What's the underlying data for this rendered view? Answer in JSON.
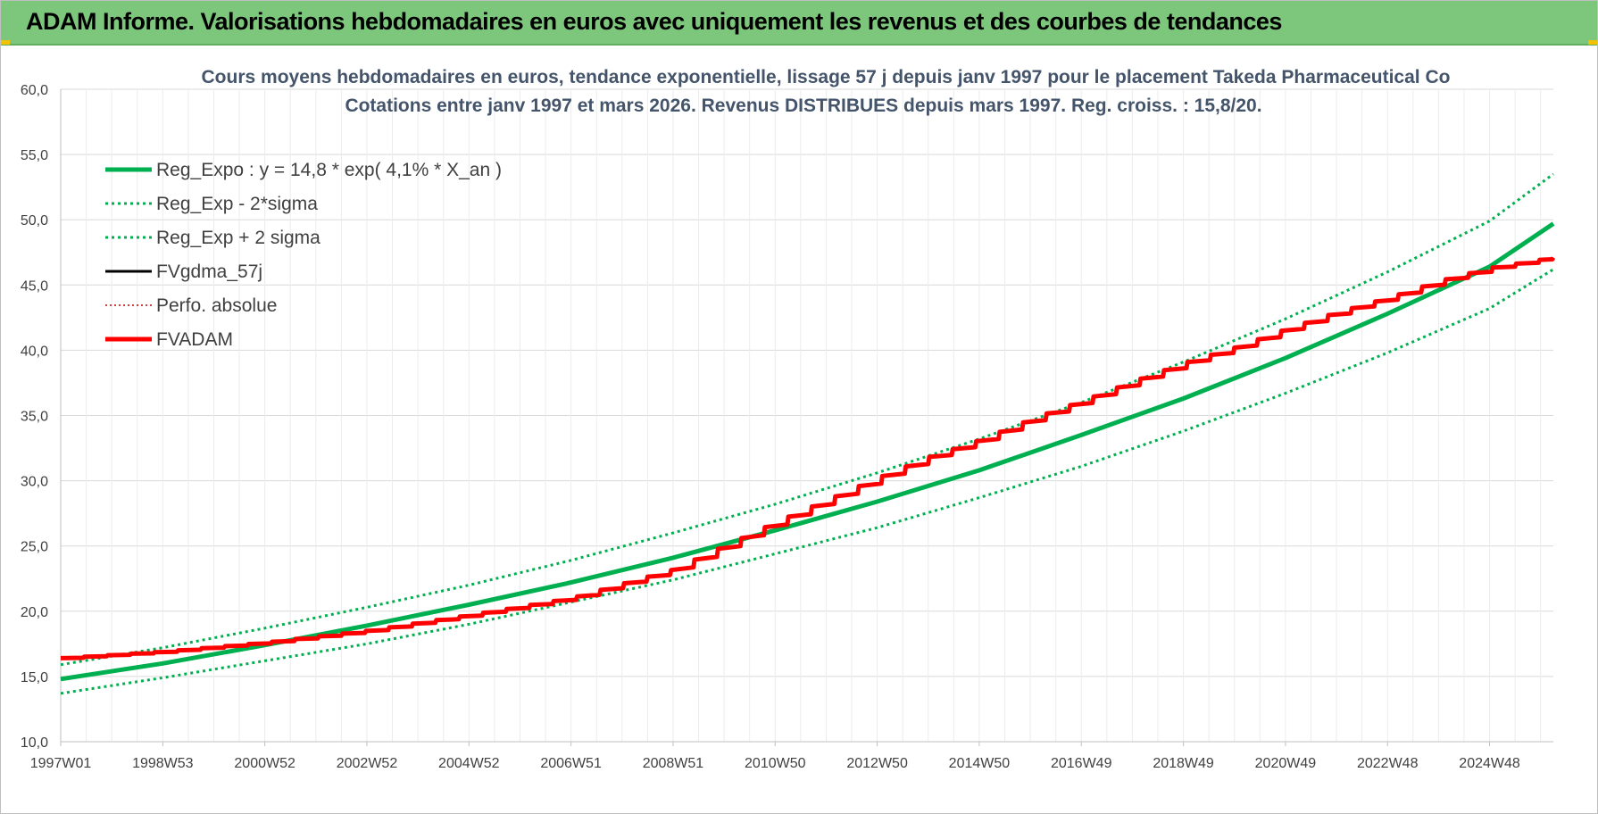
{
  "header": {
    "title": "ADAM Informe. Valorisations hebdomadaires en euros avec uniquement les revenus et des courbes de tendances"
  },
  "chart_data": {
    "type": "line",
    "title": "Cours moyens hebdomadaires en euros, tendance exponentielle, lissage 57 j depuis janv 1997 pour le placement Takeda Pharmaceutical Co",
    "subtitle": "Cotations entre janv 1997 et mars 2026. Revenus DISTRIBUES depuis mars 1997. Reg. croiss. : 15,8/20.",
    "x_tick_labels": [
      "1997W01",
      "1998W53",
      "2000W52",
      "2002W52",
      "2004W52",
      "2006W51",
      "2008W51",
      "2010W50",
      "2012W50",
      "2014W50",
      "2016W49",
      "2018W49",
      "2020W49",
      "2022W48",
      "2024W48"
    ],
    "x_range": [
      1997.0,
      2026.25
    ],
    "y_ticks": [
      "10,0",
      "15,0",
      "20,0",
      "25,0",
      "30,0",
      "35,0",
      "40,0",
      "45,0",
      "50,0",
      "55,0",
      "60,0"
    ],
    "ylim": [
      10,
      60
    ],
    "grid": true,
    "legend_position": "top-left",
    "series": [
      {
        "name": "Reg_Expo : y = 14,8 * exp( 4,1% *  X_an )",
        "color": "#00b050",
        "style": "solid",
        "x": [
          1997,
          1999,
          2001,
          2003,
          2005,
          2007,
          2009,
          2011,
          2013,
          2015,
          2017,
          2019,
          2021,
          2023,
          2025,
          2026.25
        ],
        "y": [
          14.8,
          16.0,
          17.4,
          18.9,
          20.5,
          22.2,
          24.1,
          26.2,
          28.4,
          30.8,
          33.5,
          36.3,
          39.4,
          42.8,
          46.4,
          49.7
        ]
      },
      {
        "name": "Reg_Exp - 2*sigma",
        "color": "#00b050",
        "style": "dotted",
        "x": [
          1997,
          1999,
          2001,
          2003,
          2005,
          2007,
          2009,
          2011,
          2013,
          2015,
          2017,
          2019,
          2021,
          2023,
          2025,
          2026.25
        ],
        "y": [
          13.7,
          14.9,
          16.2,
          17.5,
          19.0,
          20.7,
          22.4,
          24.4,
          26.4,
          28.7,
          31.1,
          33.8,
          36.7,
          39.8,
          43.2,
          46.2
        ]
      },
      {
        "name": "Reg_Exp + 2 sigma",
        "color": "#00b050",
        "style": "dotted",
        "x": [
          1997,
          1999,
          2001,
          2003,
          2005,
          2007,
          2009,
          2011,
          2013,
          2015,
          2017,
          2019,
          2021,
          2023,
          2025,
          2026.25
        ],
        "y": [
          15.9,
          17.2,
          18.7,
          20.3,
          22.0,
          23.9,
          26.0,
          28.2,
          30.6,
          33.2,
          36.0,
          39.1,
          42.4,
          46.0,
          49.9,
          53.5
        ]
      },
      {
        "name": "FVgdma_57j",
        "color": "#000000",
        "style": "solid",
        "x": [
          1997,
          1999,
          2001,
          2003,
          2005,
          2007,
          2009,
          2010,
          2011,
          2012,
          2013,
          2014,
          2015,
          2016,
          2017,
          2018,
          2019,
          2020,
          2021,
          2022,
          2023,
          2024,
          2025,
          2026.25
        ],
        "y": [
          16.4,
          16.9,
          17.6,
          18.5,
          19.7,
          21.0,
          23.2,
          25.0,
          26.8,
          28.5,
          30.2,
          31.8,
          33.1,
          34.7,
          36.1,
          37.6,
          39.0,
          40.2,
          41.6,
          42.9,
          44.0,
          45.3,
          46.3,
          47.1
        ]
      },
      {
        "name": "Perfo. absolue",
        "color": "#c00000",
        "style": "dotted",
        "x": [
          1997,
          1999,
          2001,
          2003,
          2005,
          2007,
          2009,
          2010,
          2011,
          2012,
          2013,
          2014,
          2015,
          2016,
          2017,
          2018,
          2019,
          2020,
          2021,
          2022,
          2023,
          2024,
          2025,
          2026.25
        ],
        "y": [
          16.4,
          16.9,
          17.6,
          18.5,
          19.7,
          21.0,
          23.2,
          25.0,
          26.8,
          28.5,
          30.2,
          31.8,
          33.1,
          34.7,
          36.1,
          37.6,
          39.0,
          40.2,
          41.6,
          42.9,
          44.0,
          45.3,
          46.3,
          47.1
        ]
      },
      {
        "name": "FVADAM",
        "color": "#ff0000",
        "style": "solid",
        "x": [
          1997,
          1999,
          2001,
          2003,
          2005,
          2007,
          2009,
          2010,
          2011,
          2012,
          2013,
          2014,
          2015,
          2016,
          2017,
          2018,
          2019,
          2020,
          2021,
          2022,
          2023,
          2024,
          2025,
          2026.25
        ],
        "y": [
          16.4,
          16.9,
          17.6,
          18.5,
          19.7,
          21.0,
          23.2,
          25.0,
          26.8,
          28.5,
          30.2,
          31.8,
          33.1,
          34.7,
          36.1,
          37.6,
          39.0,
          40.2,
          41.6,
          42.9,
          44.0,
          45.3,
          46.3,
          47.1
        ]
      }
    ]
  }
}
